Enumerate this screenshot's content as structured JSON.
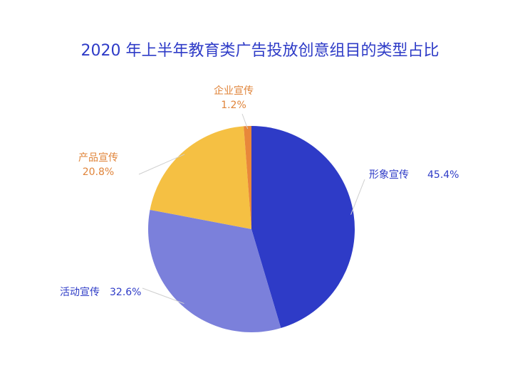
{
  "chart_data": {
    "type": "pie",
    "title": "2020 年上半年教育类广告投放创意组目的类型占比",
    "categories": [
      "形象宣传",
      "活动宣传",
      "产品宣传",
      "企业宣传"
    ],
    "values": [
      45.4,
      32.6,
      20.8,
      1.2
    ],
    "value_labels": [
      "45.4%",
      "32.6%",
      "20.8%",
      "1.2%"
    ],
    "colors": [
      "#2e3bc7",
      "#7b80db",
      "#f5c043",
      "#e8873a"
    ],
    "label_colors": [
      "#2e3bc7",
      "#2e3bc7",
      "#e0843a",
      "#e0843a"
    ]
  }
}
